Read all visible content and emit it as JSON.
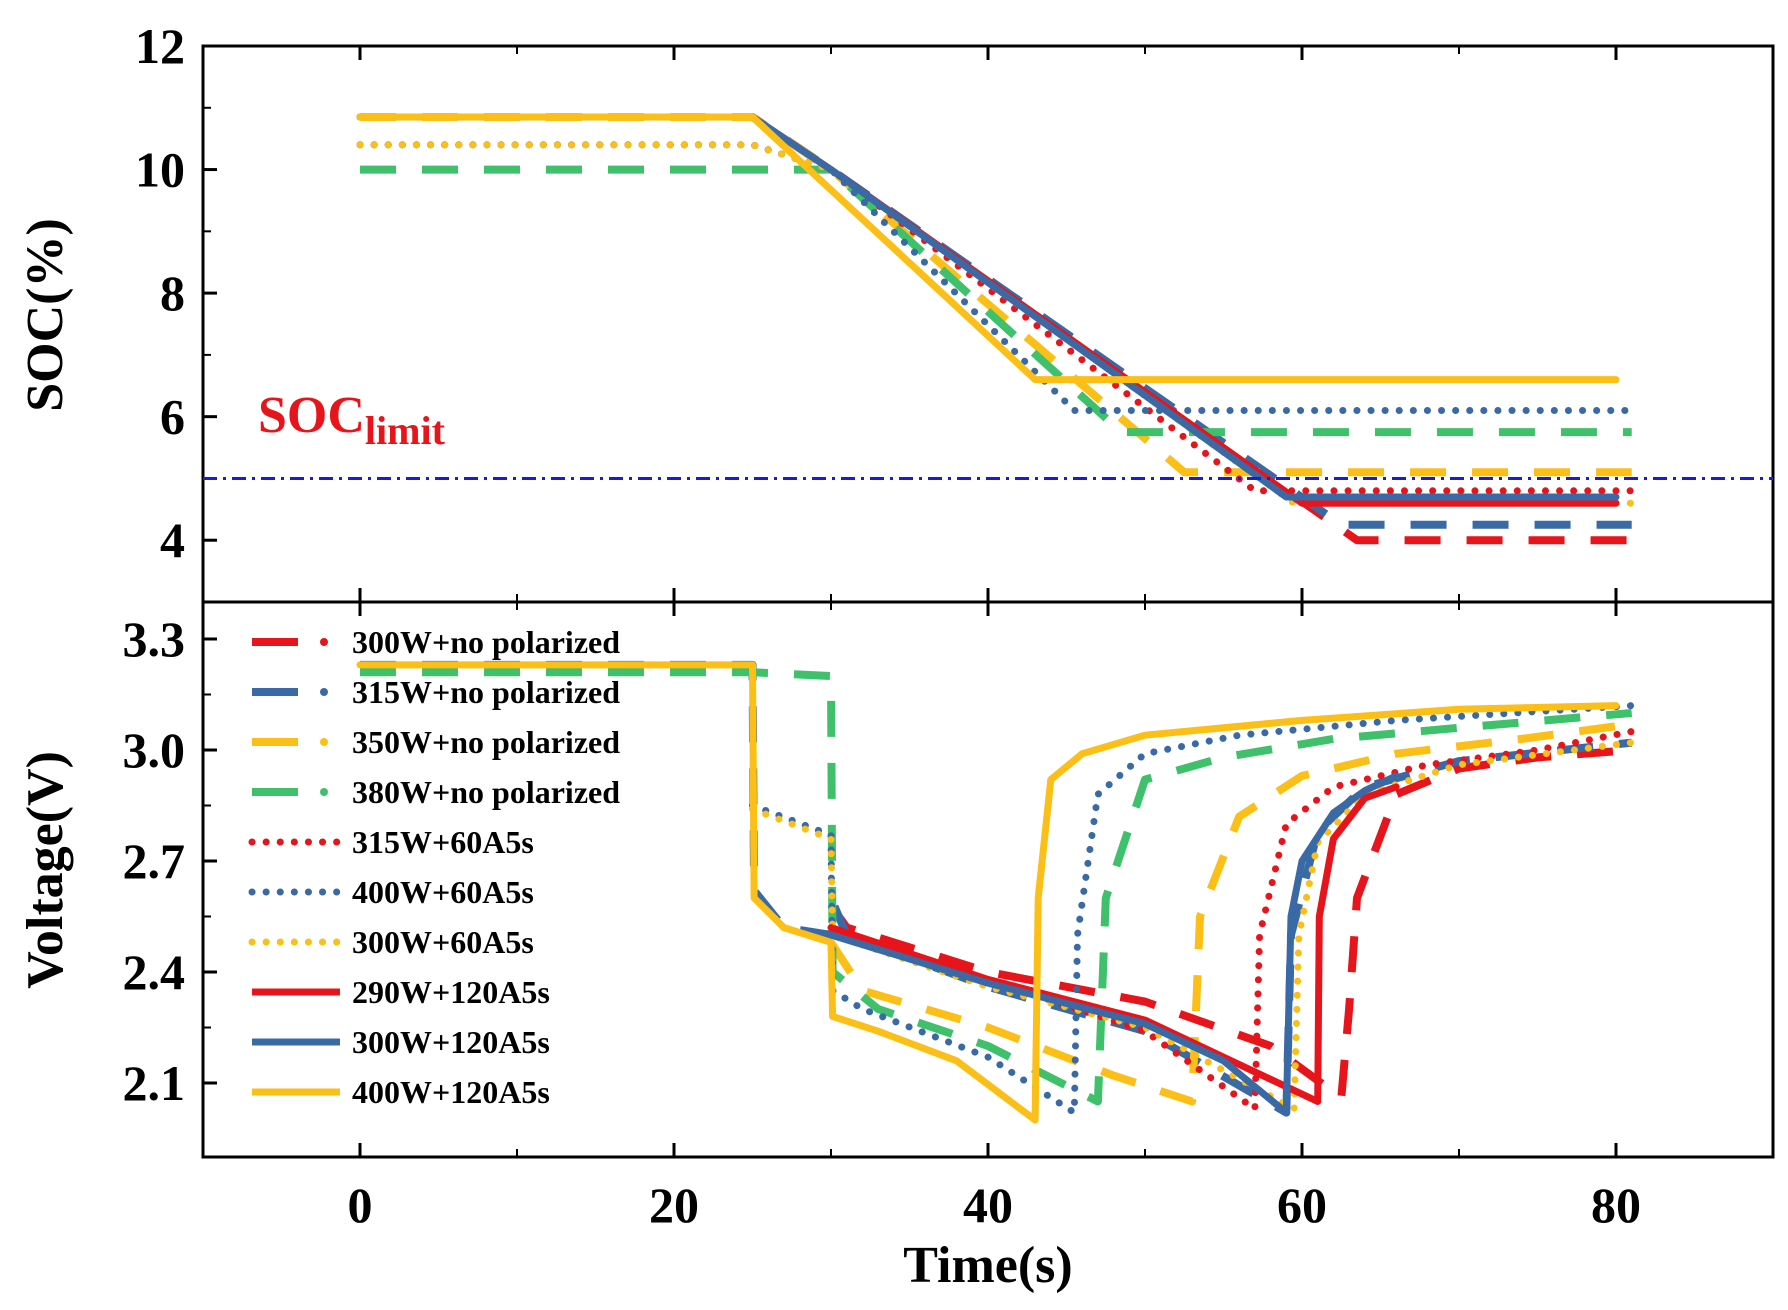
{
  "chart_data": {
    "type": "line",
    "xlabel": "Time(s)",
    "xlim": [
      -10,
      90
    ],
    "xticks": [
      0,
      20,
      40,
      60,
      80
    ],
    "colors": {
      "red": "#e8141b",
      "blue": "#3a6aa6",
      "yellow": "#fbbf17",
      "green": "#3fc06a",
      "limit": "#1a1ad8"
    },
    "panels": [
      {
        "id": "soc",
        "ylabel": "SOC(%)",
        "ylim": [
          3,
          12
        ],
        "yticks": [
          4,
          6,
          8,
          10,
          12
        ],
        "annotation": {
          "main": "SOC",
          "subscript": "limit",
          "value": 5
        },
        "series": [
          {
            "name": "300W+no polarized",
            "color": "red",
            "style": "dash",
            "points": [
              [
                0,
                10.85
              ],
              [
                25,
                10.85
              ],
              [
                30,
                10.0
              ],
              [
                63.5,
                4.0
              ],
              [
                81,
                4.0
              ]
            ]
          },
          {
            "name": "315W+no polarized",
            "color": "blue",
            "style": "dash",
            "points": [
              [
                0,
                10.85
              ],
              [
                25,
                10.85
              ],
              [
                30,
                10.0
              ],
              [
                62.5,
                4.25
              ],
              [
                81,
                4.25
              ]
            ]
          },
          {
            "name": "350W+no polarized",
            "color": "yellow",
            "style": "dash",
            "points": [
              [
                0,
                10.85
              ],
              [
                25,
                10.85
              ],
              [
                30,
                10.0
              ],
              [
                52.5,
                5.1
              ],
              [
                81,
                5.1
              ]
            ]
          },
          {
            "name": "380W+no polarized",
            "color": "green",
            "style": "dash",
            "points": [
              [
                0,
                10.0
              ],
              [
                30,
                10.0
              ],
              [
                48.5,
                5.75
              ],
              [
                81,
                5.75
              ]
            ]
          },
          {
            "name": "315W+60A5s",
            "color": "red",
            "style": "dot",
            "points": [
              [
                0,
                10.4
              ],
              [
                25,
                10.4
              ],
              [
                30,
                10.0
              ],
              [
                57,
                4.8
              ],
              [
                81,
                4.8
              ]
            ]
          },
          {
            "name": "400W+60A5s",
            "color": "blue",
            "style": "dot",
            "points": [
              [
                0,
                10.4
              ],
              [
                25,
                10.4
              ],
              [
                30,
                10.0
              ],
              [
                45.5,
                6.1
              ],
              [
                81,
                6.1
              ]
            ]
          },
          {
            "name": "300W+60A5s",
            "color": "yellow",
            "style": "dot",
            "points": [
              [
                0,
                10.4
              ],
              [
                25,
                10.4
              ],
              [
                30,
                10.0
              ],
              [
                59.5,
                4.6
              ],
              [
                81,
                4.6
              ]
            ]
          },
          {
            "name": "290W+120A5s",
            "color": "red",
            "style": "solid",
            "points": [
              [
                0,
                10.85
              ],
              [
                25,
                10.85
              ],
              [
                30,
                10.0
              ],
              [
                60,
                4.6
              ],
              [
                80,
                4.6
              ]
            ]
          },
          {
            "name": "300W+120A5s",
            "color": "blue",
            "style": "solid",
            "points": [
              [
                0,
                10.85
              ],
              [
                25,
                10.85
              ],
              [
                30,
                10.0
              ],
              [
                59,
                4.7
              ],
              [
                80,
                4.7
              ]
            ]
          },
          {
            "name": "400W+120A5s",
            "color": "yellow",
            "style": "solid",
            "points": [
              [
                0,
                10.85
              ],
              [
                25,
                10.85
              ],
              [
                43,
                6.6
              ],
              [
                80,
                6.6
              ]
            ]
          }
        ]
      },
      {
        "id": "voltage",
        "ylabel": "Voltage(V)",
        "ylim": [
          1.9,
          3.4
        ],
        "yticks": [
          2.1,
          2.4,
          2.7,
          3.0,
          3.3
        ],
        "series": [
          {
            "name": "300W+no polarized",
            "color": "red",
            "style": "dash",
            "points": [
              [
                30,
                2.58
              ],
              [
                31,
                2.52
              ],
              [
                40,
                2.4
              ],
              [
                50,
                2.32
              ],
              [
                58,
                2.2
              ],
              [
                62.5,
                2.06
              ],
              [
                63,
                2.3
              ],
              [
                63.5,
                2.6
              ],
              [
                66,
                2.88
              ],
              [
                70,
                2.95
              ],
              [
                75,
                2.98
              ],
              [
                81,
                3.0
              ]
            ]
          },
          {
            "name": "315W+no polarized",
            "color": "blue",
            "style": "dash",
            "points": [
              [
                0,
                3.23
              ],
              [
                25,
                3.23
              ],
              [
                25.1,
                2.62
              ],
              [
                27,
                2.52
              ],
              [
                30,
                2.5
              ],
              [
                30.2,
                2.58
              ],
              [
                31,
                2.5
              ],
              [
                40,
                2.36
              ],
              [
                50,
                2.24
              ],
              [
                59,
                2.02
              ],
              [
                59.3,
                2.5
              ],
              [
                61,
                2.78
              ],
              [
                64,
                2.9
              ],
              [
                70,
                2.97
              ],
              [
                81,
                3.02
              ]
            ]
          },
          {
            "name": "350W+no polarized",
            "color": "yellow",
            "style": "dash",
            "points": [
              [
                30,
                2.48
              ],
              [
                32,
                2.35
              ],
              [
                40,
                2.25
              ],
              [
                48,
                2.12
              ],
              [
                53,
                2.05
              ],
              [
                53.5,
                2.55
              ],
              [
                56,
                2.82
              ],
              [
                60,
                2.93
              ],
              [
                66,
                2.99
              ],
              [
                74,
                3.03
              ],
              [
                81,
                3.07
              ]
            ]
          },
          {
            "name": "380W+no polarized",
            "color": "green",
            "style": "dash",
            "points": [
              [
                0,
                3.21
              ],
              [
                25,
                3.21
              ],
              [
                30,
                3.2
              ],
              [
                30.1,
                2.4
              ],
              [
                33,
                2.3
              ],
              [
                40,
                2.2
              ],
              [
                47,
                2.05
              ],
              [
                47.5,
                2.6
              ],
              [
                50,
                2.92
              ],
              [
                55,
                2.98
              ],
              [
                62,
                3.03
              ],
              [
                70,
                3.06
              ],
              [
                81,
                3.1
              ]
            ]
          },
          {
            "name": "315W+60A5s",
            "color": "red",
            "style": "dot",
            "points": [
              [
                30,
                2.5
              ],
              [
                40,
                2.38
              ],
              [
                50,
                2.24
              ],
              [
                57,
                2.03
              ],
              [
                57.3,
                2.5
              ],
              [
                59,
                2.8
              ],
              [
                62,
                2.9
              ],
              [
                68,
                2.96
              ],
              [
                75,
                3.0
              ],
              [
                81,
                3.05
              ]
            ]
          },
          {
            "name": "400W+60A5s",
            "color": "blue",
            "style": "dot",
            "points": [
              [
                25,
                2.85
              ],
              [
                30,
                2.77
              ],
              [
                30.1,
                2.35
              ],
              [
                32,
                2.3
              ],
              [
                40,
                2.17
              ],
              [
                45.5,
                2.02
              ],
              [
                45.7,
                2.5
              ],
              [
                47,
                2.88
              ],
              [
                50,
                2.99
              ],
              [
                56,
                3.04
              ],
              [
                66,
                3.08
              ],
              [
                81,
                3.12
              ]
            ]
          },
          {
            "name": "300W+60A5s",
            "color": "yellow",
            "style": "dot",
            "points": [
              [
                25,
                2.84
              ],
              [
                30,
                2.76
              ],
              [
                30.1,
                2.5
              ],
              [
                40,
                2.36
              ],
              [
                50,
                2.25
              ],
              [
                59.5,
                2.03
              ],
              [
                59.8,
                2.5
              ],
              [
                61,
                2.75
              ],
              [
                64,
                2.88
              ],
              [
                70,
                2.96
              ],
              [
                81,
                3.02
              ]
            ]
          },
          {
            "name": "290W+120A5s",
            "color": "red",
            "style": "solid",
            "points": [
              [
                30,
                2.52
              ],
              [
                40,
                2.38
              ],
              [
                50,
                2.27
              ],
              [
                56,
                2.15
              ],
              [
                61,
                2.05
              ],
              [
                61.1,
                2.55
              ],
              [
                62,
                2.76
              ],
              [
                64,
                2.87
              ],
              [
                66,
                2.9
              ]
            ]
          },
          {
            "name": "300W+120A5s",
            "color": "blue",
            "style": "solid",
            "points": [
              [
                30,
                2.5
              ],
              [
                40,
                2.37
              ],
              [
                50,
                2.26
              ],
              [
                55,
                2.16
              ],
              [
                59,
                2.02
              ],
              [
                59.3,
                2.55
              ],
              [
                60,
                2.7
              ],
              [
                62,
                2.83
              ],
              [
                64,
                2.89
              ],
              [
                66,
                2.93
              ]
            ]
          },
          {
            "name": "400W+120A5s",
            "color": "yellow",
            "style": "solid",
            "points": [
              [
                0,
                3.23
              ],
              [
                25,
                3.23
              ],
              [
                25.1,
                2.6
              ],
              [
                27,
                2.52
              ],
              [
                30,
                2.48
              ],
              [
                30.1,
                2.28
              ],
              [
                33,
                2.24
              ],
              [
                38,
                2.16
              ],
              [
                43,
                2.0
              ],
              [
                43.2,
                2.6
              ],
              [
                44,
                2.92
              ],
              [
                46,
                2.99
              ],
              [
                50,
                3.04
              ],
              [
                60,
                3.08
              ],
              [
                70,
                3.11
              ],
              [
                80,
                3.12
              ]
            ]
          }
        ]
      }
    ],
    "legend": {
      "placement": "top-left",
      "entries": [
        "300W+no polarized",
        "315W+no polarized",
        "350W+no polarized",
        "380W+no polarized",
        "315W+60A5s",
        "400W+60A5s",
        "300W+60A5s",
        "290W+120A5s",
        "300W+120A5s",
        "400W+120A5s"
      ]
    }
  }
}
